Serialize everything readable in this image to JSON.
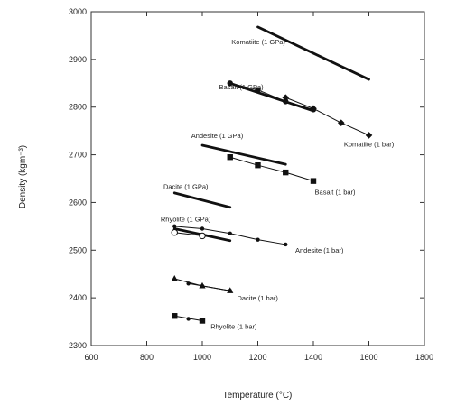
{
  "chart_data": {
    "type": "scatter",
    "xlabel": "Temperature (°C)",
    "ylabel": "Density (kgm⁻³)",
    "xlim": [
      600,
      1800
    ],
    "ylim": [
      2300,
      3000
    ],
    "xticks": [
      600,
      800,
      1000,
      1200,
      1400,
      1600,
      1800
    ],
    "yticks": [
      2300,
      2400,
      2500,
      2600,
      2700,
      2800,
      2900,
      3000
    ],
    "grid": false,
    "colors": {
      "line": "#111111",
      "frame": "#333333"
    },
    "series": [
      {
        "name": "Komatiite (1 GPa)",
        "style": "thick-line",
        "x": [
          1200,
          1600
        ],
        "y": [
          2968,
          2858
        ]
      },
      {
        "name": "Basalt (1 GPa)",
        "style": "thick-line",
        "x": [
          1100,
          1400
        ],
        "y": [
          2850,
          2792
        ]
      },
      {
        "name": "Andesite (1 GPa)",
        "style": "thick-line",
        "x": [
          1000,
          1300
        ],
        "y": [
          2720,
          2680
        ]
      },
      {
        "name": "Dacite (1 GPa)",
        "style": "thick-line",
        "x": [
          900,
          1100
        ],
        "y": [
          2620,
          2590
        ]
      },
      {
        "name": "Rhyolite (1 GPa)",
        "style": "thick-line",
        "x": [
          900,
          1100
        ],
        "y": [
          2545,
          2520
        ]
      },
      {
        "name": "Komatiite (1 bar)",
        "style": "thin-line",
        "marker": "diamond",
        "x": [
          1300,
          1400,
          1500,
          1600
        ],
        "y": [
          2820,
          2797,
          2767,
          2741
        ]
      },
      {
        "name": "Basalt (1 bar)",
        "style": "thin-line",
        "marker": "circle",
        "x": [
          1100,
          1200,
          1300,
          1400
        ],
        "y": [
          2850,
          2836,
          2812,
          2795
        ]
      },
      {
        "name": "Basalt (1 bar)",
        "style": "thin-line",
        "marker": "square",
        "x": [
          1100,
          1200,
          1300,
          1400
        ],
        "y": [
          2695,
          2678,
          2663,
          2645
        ]
      },
      {
        "name": "Andesite (1 bar)",
        "style": "thin-line",
        "marker": "dot",
        "x": [
          900,
          1000,
          1100,
          1200,
          1300
        ],
        "y": [
          2550,
          2545,
          2535,
          2522,
          2512
        ]
      },
      {
        "name": "Rhyolite (1 GPa)",
        "style": "thin-line",
        "marker": "open-circle",
        "x": [
          900,
          1000
        ],
        "y": [
          2537,
          2530
        ]
      },
      {
        "name": "Dacite (1 bar)",
        "style": "thin-line",
        "marker": "triangle",
        "x": [
          900,
          1000,
          1100
        ],
        "y": [
          2440,
          2425,
          2415
        ]
      },
      {
        "name": "Rhyolite (1 bar)",
        "style": "thin-line",
        "marker": "square",
        "x": [
          900,
          1000
        ],
        "y": [
          2362,
          2352
        ]
      },
      {
        "name": "Dacite (1 bar)",
        "style": "thin-line",
        "marker": "dot",
        "x": [
          950,
          1000,
          1100
        ],
        "y": [
          2430,
          2425,
          2415
        ]
      },
      {
        "name": "Rhyolite (1 bar)",
        "style": "thin-line",
        "marker": "dot",
        "x": [
          950
        ],
        "y": [
          2356
        ]
      }
    ],
    "annotations": [
      {
        "text": "Komatiite (1 GPa)",
        "x": 1105,
        "y": 2932,
        "anchor": "start"
      },
      {
        "text": "Basalt (1 GPa)",
        "x": 1060,
        "y": 2837,
        "anchor": "start"
      },
      {
        "text": "Andesite (1 GPa)",
        "x": 960,
        "y": 2735,
        "anchor": "start"
      },
      {
        "text": "Dacite (1 GPa)",
        "x": 860,
        "y": 2628,
        "anchor": "start"
      },
      {
        "text": "Rhyolite (1 GPa)",
        "x": 850,
        "y": 2560,
        "anchor": "start"
      },
      {
        "text": "Komatiite (1 bar)",
        "x": 1510,
        "y": 2717,
        "anchor": "start"
      },
      {
        "text": "Basalt (1 bar)",
        "x": 1405,
        "y": 2617,
        "anchor": "start"
      },
      {
        "text": "Andesite (1 bar)",
        "x": 1335,
        "y": 2495,
        "anchor": "start"
      },
      {
        "text": "Dacite (1 bar)",
        "x": 1125,
        "y": 2395,
        "anchor": "start"
      },
      {
        "text": "Rhyolite (1 bar)",
        "x": 1030,
        "y": 2335,
        "anchor": "start"
      }
    ]
  }
}
